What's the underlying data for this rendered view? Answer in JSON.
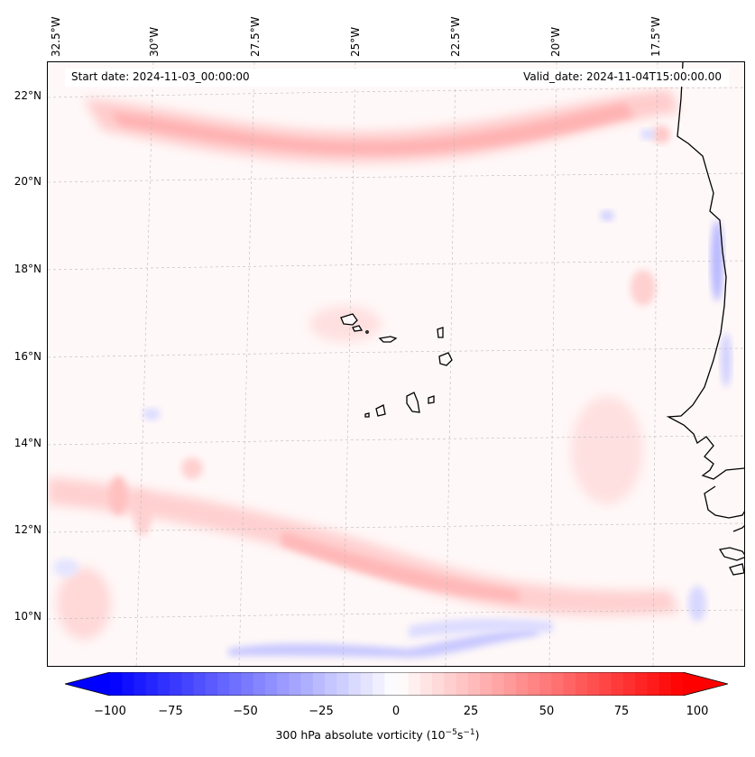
{
  "map": {
    "lon_labels": [
      "32.5°W",
      "30°W",
      "27.5°W",
      "25°W",
      "22.5°W",
      "20°W",
      "17.5°W"
    ],
    "lat_labels": [
      "22°N",
      "20°N",
      "18°N",
      "16°N",
      "14°N",
      "12°N",
      "10°N"
    ],
    "start_date": "Start date: 2024-11-03_00:00:00",
    "valid_date": "Valid_date: 2024-11-04T15:00:00.00",
    "field": "300 hPa absolute vorticity",
    "colors": {
      "background": "#fff8f8",
      "positive": "#ff0000",
      "negative": "#0000ff",
      "coastline": "#000000"
    }
  },
  "colorbar": {
    "ticks": [
      "−100",
      "−75",
      "−50",
      "−25",
      "0",
      "25",
      "50",
      "75",
      "100"
    ],
    "label_prefix": "300 hPa absolute vorticity (10",
    "label_exp1": "−5",
    "label_mid": "s",
    "label_exp2": "−1",
    "label_suffix": ")",
    "min": -100,
    "max": 100,
    "cmap": "bwr"
  }
}
